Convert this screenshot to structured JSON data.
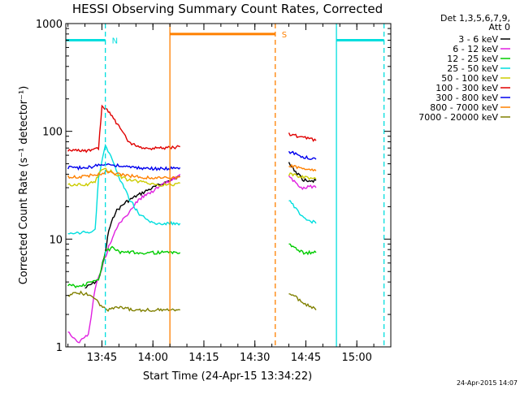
{
  "chart_data": {
    "type": "line",
    "title": "HESSI Observing Summary Count Rates, Corrected",
    "xlabel": "Start Time (24-Apr-15 13:34:22)",
    "ylabel": "Corrected Count Rate (s⁻¹ detector⁻¹)",
    "y_scale": "log",
    "ylim": [
      1,
      1000
    ],
    "xlim": [
      "13:34:22",
      "15:10:00"
    ],
    "x_ticks": [
      "13:45",
      "14:00",
      "14:15",
      "14:30",
      "14:45",
      "15:00"
    ],
    "y_ticks": [
      "1",
      "10",
      "100",
      "1000"
    ],
    "grid": false,
    "legend_position": "top-right",
    "legend_header": [
      "Det 1,3,5,6,7,9,",
      "Att 0"
    ],
    "footer_stamp": "24-Apr-2015 14:07",
    "series": [
      {
        "name": "3 - 6 keV",
        "color": "#000000",
        "segments": [
          {
            "x": [
              "13:40",
              "13:44",
              "13:46",
              "13:47",
              "13:49",
              "13:52",
              "13:55",
              "13:58",
              "14:00",
              "14:03",
              "14:05",
              "14:08"
            ],
            "values": [
              3.5,
              4.2,
              7.5,
              12,
              18,
              22,
              25,
              28,
              30,
              33,
              35,
              38
            ]
          },
          {
            "x": [
              "14:40",
              "14:42",
              "14:44",
              "14:46",
              "14:48"
            ],
            "values": [
              50,
              42,
              36,
              34,
              35
            ]
          }
        ]
      },
      {
        "name": "6 - 12 keV",
        "color": "#e020e0",
        "segments": [
          {
            "x": [
              "13:35",
              "13:38",
              "13:41",
              "13:43",
              "13:47",
              "13:50",
              "13:52",
              "13:55",
              "13:58",
              "14:00",
              "14:03",
              "14:06",
              "14:08"
            ],
            "values": [
              1.4,
              1.1,
              1.3,
              3.5,
              8.5,
              14,
              16,
              22,
              26,
              28,
              32,
              36,
              40
            ]
          },
          {
            "x": [
              "14:40",
              "14:42",
              "14:44",
              "14:46",
              "14:48"
            ],
            "values": [
              38,
              33,
              30,
              31,
              30
            ]
          }
        ]
      },
      {
        "name": "12 - 25 keV",
        "color": "#00cc00",
        "segments": [
          {
            "x": [
              "13:35",
              "13:38",
              "13:41",
              "13:44",
              "13:46",
              "13:48",
              "13:50",
              "13:55",
              "14:00",
              "14:05",
              "14:08"
            ],
            "values": [
              3.8,
              3.6,
              3.9,
              4.2,
              7.5,
              8.5,
              7.5,
              7.5,
              7.5,
              7.5,
              7.5
            ]
          },
          {
            "x": [
              "14:40",
              "14:44",
              "14:48"
            ],
            "values": [
              9,
              7.5,
              7.5
            ]
          }
        ]
      },
      {
        "name": "25 - 50 keV",
        "color": "#00dede",
        "segments": [
          {
            "x": [
              "13:35",
              "13:40",
              "13:43",
              "13:44",
              "13:46",
              "13:48",
              "13:50",
              "13:53",
              "13:56",
              "14:00",
              "14:05",
              "14:08"
            ],
            "values": [
              11,
              11.5,
              12,
              38,
              75,
              55,
              38,
              24,
              17,
              14,
              14,
              14
            ]
          },
          {
            "x": [
              "14:40",
              "14:44",
              "14:48"
            ],
            "values": [
              23,
              16,
              14
            ]
          }
        ]
      },
      {
        "name": "50 - 100 keV",
        "color": "#cccc00",
        "segments": [
          {
            "x": [
              "13:35",
              "13:40",
              "13:43",
              "13:45",
              "13:48",
              "13:52",
              "13:56",
              "14:00",
              "14:05",
              "14:08"
            ],
            "values": [
              32,
              32,
              34,
              45,
              42,
              36,
              34,
              32,
              32,
              33
            ]
          },
          {
            "x": [
              "14:40",
              "14:44",
              "14:48"
            ],
            "values": [
              40,
              38,
              36
            ]
          }
        ]
      },
      {
        "name": "100 - 300 keV",
        "color": "#e00000",
        "segments": [
          {
            "x": [
              "13:35",
              "13:40",
              "13:44",
              "13:45",
              "13:48",
              "13:50",
              "13:53",
              "13:56",
              "14:00",
              "14:05",
              "14:08"
            ],
            "values": [
              66,
              66,
              70,
              175,
              140,
              110,
              80,
              70,
              70,
              70,
              72
            ]
          },
          {
            "x": [
              "14:40",
              "14:44",
              "14:48"
            ],
            "values": [
              95,
              88,
              82
            ]
          }
        ]
      },
      {
        "name": "300 - 800 keV",
        "color": "#0000ee",
        "segments": [
          {
            "x": [
              "13:35",
              "13:40",
              "13:44",
              "13:46",
              "13:50",
              "13:55",
              "14:00",
              "14:05",
              "14:08"
            ],
            "values": [
              46,
              46,
              48,
              50,
              48,
              46,
              45,
              45,
              46
            ]
          },
          {
            "x": [
              "14:40",
              "14:44",
              "14:48"
            ],
            "values": [
              65,
              58,
              55
            ]
          }
        ]
      },
      {
        "name": "800 - 7000 keV",
        "color": "#ff8000",
        "segments": [
          {
            "x": [
              "13:35",
              "13:40",
              "13:44",
              "13:46",
              "13:50",
              "13:55",
              "14:00",
              "14:05",
              "14:08"
            ],
            "values": [
              38,
              38,
              40,
              42,
              40,
              38,
              37,
              37,
              38
            ]
          },
          {
            "x": [
              "14:40",
              "14:44",
              "14:48"
            ],
            "values": [
              48,
              45,
              43
            ]
          }
        ]
      },
      {
        "name": "7000 - 20000 keV",
        "color": "#808000",
        "segments": [
          {
            "x": [
              "13:35",
              "13:38",
              "13:42",
              "13:46",
              "13:50",
              "13:55",
              "14:00",
              "14:05",
              "14:08"
            ],
            "values": [
              3.0,
              3.2,
              3.0,
              2.2,
              2.3,
              2.2,
              2.2,
              2.2,
              2.2
            ]
          },
          {
            "x": [
              "14:40",
              "14:44",
              "14:48"
            ],
            "values": [
              3.2,
              2.6,
              2.2
            ]
          }
        ]
      }
    ],
    "flags": [
      {
        "label": "N",
        "color": "#00dede",
        "level": 700,
        "start": "13:34:22",
        "end": "13:46",
        "style": "solid"
      },
      {
        "label": "",
        "color": "#00dede",
        "level": 700,
        "start": "14:54",
        "end": "15:08",
        "style": "solid"
      },
      {
        "label": "S",
        "color": "#ff8000",
        "level": 800,
        "start": "14:05",
        "end": "14:36",
        "style": "solid"
      }
    ],
    "vlines": [
      {
        "x": "13:46",
        "color": "#00dede",
        "style": "dashed"
      },
      {
        "x": "14:54",
        "color": "#00dede",
        "style": "solid"
      },
      {
        "x": "15:08",
        "color": "#00dede",
        "style": "dashed"
      },
      {
        "x": "14:05",
        "color": "#ff8000",
        "style": "solid"
      },
      {
        "x": "14:36",
        "color": "#ff8000",
        "style": "dashed"
      }
    ]
  }
}
